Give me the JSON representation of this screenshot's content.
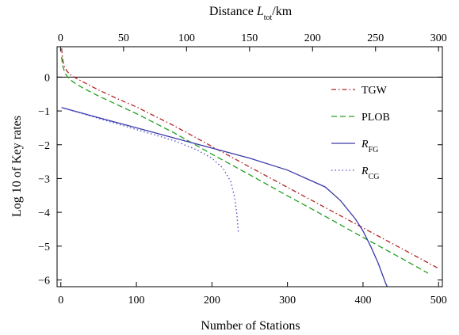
{
  "chart_data": {
    "type": "line",
    "title": "",
    "xlabel": "Number of Stations",
    "ylabel": "Log 10 of Key rates",
    "top_xlabel": {
      "prefix": "Distance ",
      "var": "L",
      "sub": "tot",
      "suffix": "/km"
    },
    "xlim": [
      -5,
      505
    ],
    "ylim": [
      -6.2,
      0.9
    ],
    "top_xlim": [
      -2.75,
      303.0
    ],
    "x_ticks": [
      0,
      100,
      200,
      300,
      400,
      500
    ],
    "y_ticks": [
      0,
      -1,
      -2,
      -3,
      -4,
      -5,
      -6
    ],
    "top_ticks": [
      0,
      50,
      100,
      150,
      200,
      250,
      300
    ],
    "reference_line_y": 0,
    "grid": false,
    "legend_position": "right",
    "series": [
      {
        "name": "TGW",
        "color": "#b22222",
        "dash": "dashdot",
        "x": [
          1,
          2,
          3,
          5,
          8,
          12,
          20,
          30,
          50,
          75,
          100,
          150,
          200,
          250,
          300,
          350,
          400,
          450,
          500
        ],
        "y": [
          0.85,
          0.6,
          0.45,
          0.3,
          0.18,
          0.08,
          -0.03,
          -0.15,
          -0.38,
          -0.64,
          -0.88,
          -1.44,
          -2.05,
          -2.66,
          -3.26,
          -3.86,
          -4.46,
          -5.06,
          -5.66
        ]
      },
      {
        "name": "PLOB",
        "color": "#22a022",
        "dash": "dashed",
        "x": [
          1,
          2,
          3,
          5,
          8,
          12,
          20,
          30,
          50,
          75,
          100,
          150,
          200,
          250,
          300,
          350,
          400,
          450,
          486
        ],
        "y": [
          0.6,
          0.4,
          0.3,
          0.15,
          0.03,
          -0.07,
          -0.2,
          -0.33,
          -0.56,
          -0.82,
          -1.08,
          -1.65,
          -2.28,
          -2.89,
          -3.51,
          -4.12,
          -4.74,
          -5.35,
          -5.8
        ]
      },
      {
        "name_var": "R",
        "name_sub": "FG",
        "color": "#3a3aaa",
        "dash": "solid",
        "x": [
          1,
          50,
          100,
          150,
          200,
          250,
          300,
          350,
          370,
          390,
          400,
          410,
          420,
          430,
          438
        ],
        "y": [
          -0.9,
          -1.2,
          -1.5,
          -1.8,
          -2.1,
          -2.4,
          -2.75,
          -3.25,
          -3.65,
          -4.2,
          -4.55,
          -5.0,
          -5.5,
          -6.1,
          -6.5
        ]
      },
      {
        "name_var": "R",
        "name_sub": "CG",
        "color": "#4a4ad0",
        "dash": "dotted",
        "x": [
          1,
          50,
          100,
          150,
          180,
          200,
          215,
          225,
          230,
          233,
          235
        ],
        "y": [
          -0.9,
          -1.22,
          -1.55,
          -1.88,
          -2.15,
          -2.4,
          -2.7,
          -3.1,
          -3.55,
          -4.05,
          -4.6
        ]
      }
    ]
  }
}
